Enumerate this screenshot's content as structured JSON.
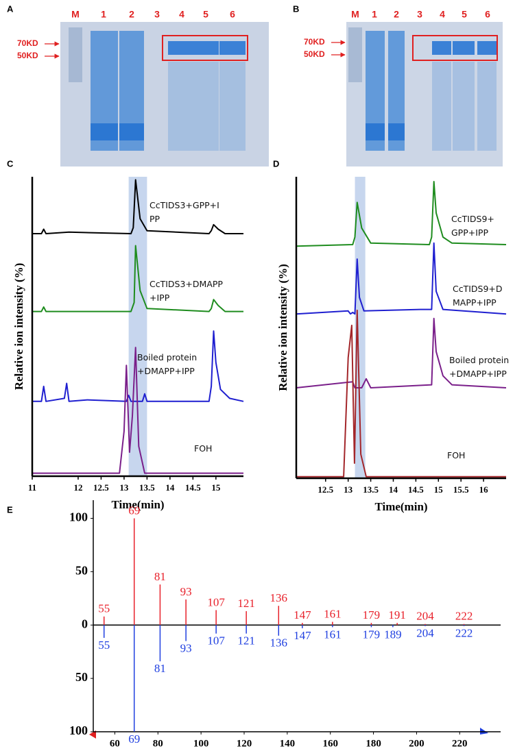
{
  "gels": [
    {
      "panel": "A",
      "lanes": [
        "M",
        "1",
        "2",
        "3",
        "4",
        "5",
        "6"
      ],
      "markers": [
        "70KD",
        "50KD"
      ]
    },
    {
      "panel": "B",
      "lanes": [
        "M",
        "1",
        "2",
        "3",
        "4",
        "5",
        "6"
      ],
      "markers": [
        "70KD",
        "50KD"
      ]
    }
  ],
  "chart_data": [
    {
      "type": "line",
      "panel": "C",
      "xlabel": "Time(min)",
      "ylabel": "Relative ion intensity (%)",
      "xlim": [
        11,
        15.6
      ],
      "xticks": [
        11,
        12,
        12.5,
        13,
        13.5,
        14,
        14.5,
        15
      ],
      "ylim": [
        0,
        100
      ],
      "highlight_x": [
        13.1,
        13.5
      ],
      "series": [
        {
          "name": "CcTIDS3+GPP+I\nPP",
          "color": "#000000",
          "x": [
            11,
            11.2,
            11.25,
            11.3,
            11.8,
            13.15,
            13.2,
            13.25,
            13.35,
            13.5,
            14.85,
            14.9,
            14.95,
            15.05,
            15.2,
            15.6
          ],
          "values": [
            81,
            81,
            82.5,
            81,
            81.5,
            81,
            83,
            99,
            86,
            82,
            81,
            82,
            84,
            82.5,
            81,
            81
          ]
        },
        {
          "name": "CcTIDS3+DMAPP\n+IPP",
          "color": "#1e8c1e",
          "x": [
            11,
            11.2,
            11.25,
            11.3,
            13.15,
            13.22,
            13.25,
            13.35,
            13.5,
            14.85,
            14.9,
            14.95,
            15.05,
            15.2,
            15.6
          ],
          "values": [
            55,
            55,
            56.5,
            55,
            55,
            58,
            77,
            62,
            56,
            55,
            56,
            59,
            57,
            55,
            55
          ]
        },
        {
          "name": "Boiled protein\n+DMAPP+IPP",
          "color": "#1f1fd0",
          "x": [
            11,
            11.2,
            11.25,
            11.3,
            11.7,
            11.75,
            11.8,
            12.2,
            13.05,
            13.1,
            13.15,
            13.4,
            13.45,
            13.5,
            14.85,
            14.9,
            14.95,
            15.0,
            15.1,
            15.3,
            15.6
          ],
          "values": [
            25,
            25,
            30,
            25,
            26,
            31,
            25,
            25.5,
            25,
            27,
            25,
            25,
            27.5,
            25,
            25,
            30,
            48.5,
            38,
            29,
            26,
            25
          ]
        },
        {
          "name": "FOH",
          "color": "#7a1f8a",
          "x": [
            11,
            12.9,
            13.0,
            13.05,
            13.12,
            13.18,
            13.25,
            13.32,
            13.45,
            15.6
          ],
          "values": [
            1,
            1,
            15,
            37,
            8,
            20,
            43,
            10,
            1,
            1
          ]
        }
      ]
    },
    {
      "type": "line",
      "panel": "D",
      "xlabel": "Time(min)",
      "ylabel": "Relative ion intensity (%)",
      "xlim": [
        11.85,
        16.5
      ],
      "xticks": [
        12.5,
        13,
        13.5,
        14,
        14.5,
        15,
        15.5,
        16
      ],
      "ylim": [
        0,
        100
      ],
      "highlight_x": [
        13.15,
        13.38
      ],
      "series": [
        {
          "name": "CcTIDS9+\nGPP+IPP",
          "color": "#1e8c1e",
          "x": [
            11.85,
            13.1,
            13.15,
            13.2,
            13.3,
            13.5,
            14.8,
            14.85,
            14.9,
            14.95,
            15.1,
            15.3,
            16.5
          ],
          "values": [
            77,
            77.5,
            80,
            91.5,
            83,
            78,
            77.5,
            80,
            98.4,
            88,
            80,
            78,
            77.5
          ]
        },
        {
          "name": "CcTIDS9+D\nMAPP+IPP",
          "color": "#1f1fd0",
          "x": [
            11.85,
            13.0,
            13.05,
            13.1,
            13.15,
            13.2,
            13.25,
            13.35,
            14.6,
            14.85,
            14.9,
            14.95,
            15.1,
            16.5
          ],
          "values": [
            54.5,
            55.5,
            54.5,
            55,
            54.5,
            72.7,
            60,
            55.5,
            56,
            56,
            78,
            62,
            56,
            54.5
          ]
        },
        {
          "name": "Boiled protein\n+DMAPP+IPP",
          "color": "#7a1f8a",
          "x": [
            11.85,
            13.1,
            13.15,
            13.3,
            13.4,
            13.5,
            14.85,
            14.9,
            14.95,
            15.1,
            15.3,
            16.5
          ],
          "values": [
            30,
            32,
            30,
            30,
            33,
            30,
            31,
            53,
            42,
            34,
            31,
            30
          ]
        },
        {
          "name": "FOH",
          "color": "#a3262a",
          "x": [
            11.85,
            12.9,
            13.0,
            13.08,
            13.14,
            13.2,
            13.28,
            13.4,
            16.5
          ],
          "values": [
            0.5,
            0.5,
            40,
            50.7,
            5,
            55.7,
            8,
            0.5,
            0.5
          ]
        }
      ]
    },
    {
      "type": "bar",
      "panel": "E",
      "xlim": [
        50,
        239
      ],
      "xticks": [
        60,
        80,
        100,
        120,
        140,
        160,
        180,
        200,
        220
      ],
      "ylim": [
        -100,
        117
      ],
      "yticks": [
        100,
        50,
        0,
        {
          "value": -50,
          "label": "50"
        },
        {
          "value": -100,
          "label": "100"
        }
      ],
      "series": [
        {
          "color": "#e8202a",
          "x": [
            55,
            69,
            81,
            93,
            107,
            121,
            136,
            147,
            161,
            179,
            191,
            204,
            222
          ],
          "values": [
            8,
            100,
            38,
            24,
            14,
            13,
            18,
            2,
            3,
            2,
            2,
            1,
            1
          ]
        },
        {
          "color": "#1f3fe0",
          "x": [
            55,
            69,
            81,
            93,
            107,
            121,
            136,
            147,
            161,
            179,
            189,
            204,
            222
          ],
          "values": [
            -12,
            -100,
            -34,
            -15,
            -8,
            -8,
            -10,
            -3,
            -2,
            -2,
            -2,
            -1,
            -1
          ]
        }
      ]
    }
  ]
}
